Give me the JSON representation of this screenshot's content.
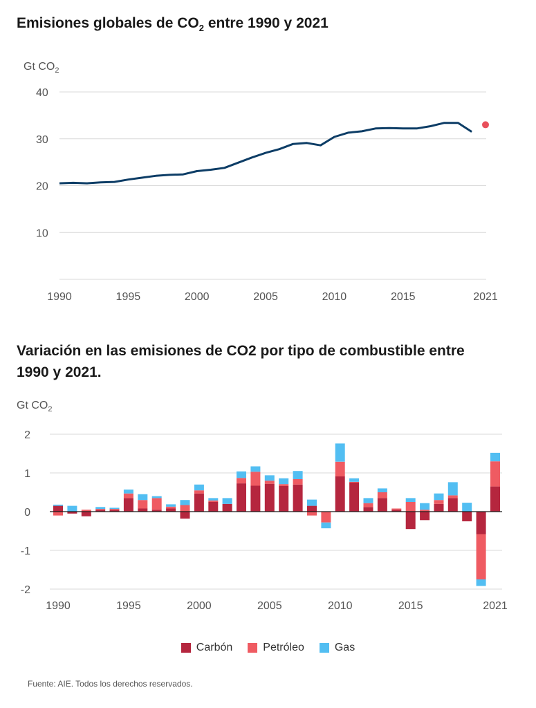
{
  "titles": {
    "chart1_main": "Emisiones globales de CO",
    "chart1_sub": "2",
    "chart1_tail": " entre 1990 y 2021",
    "chart2": "Variación en las emisiones de CO2 por tipo de combustible entre 1990 y 2021."
  },
  "source": "Fuente: AIE. Todos los derechos reservados.",
  "colors": {
    "line": "#0d3d66",
    "dot": "#e8505b",
    "carbon": "#b5263e",
    "petroleo": "#ef5b62",
    "gas": "#52bef2"
  },
  "chart_data": [
    {
      "type": "line",
      "title": "Emisiones globales de CO2 entre 1990 y 2021",
      "ylabel": "Gt CO2",
      "unit_main": "Gt CO",
      "unit_sub": "2",
      "ylim": [
        0,
        40
      ],
      "yticks": [
        10,
        20,
        30,
        40
      ],
      "xticks": [
        1990,
        1995,
        2000,
        2005,
        2010,
        2015,
        2021
      ],
      "grid": true,
      "x": [
        1990,
        1991,
        1992,
        1993,
        1994,
        1995,
        1996,
        1997,
        1998,
        1999,
        2000,
        2001,
        2002,
        2003,
        2004,
        2005,
        2006,
        2007,
        2008,
        2009,
        2010,
        2011,
        2012,
        2013,
        2014,
        2015,
        2016,
        2017,
        2018,
        2019,
        2020
      ],
      "y": [
        20.5,
        20.6,
        20.5,
        20.7,
        20.8,
        21.3,
        21.7,
        22.1,
        22.3,
        22.4,
        23.1,
        23.4,
        23.8,
        24.9,
        26.0,
        27.0,
        27.8,
        28.9,
        29.1,
        28.6,
        30.4,
        31.3,
        31.6,
        32.2,
        32.3,
        32.2,
        32.2,
        32.7,
        33.4,
        33.4,
        31.5
      ],
      "highlight": {
        "x": 2021,
        "y": 33.0
      }
    },
    {
      "type": "bar",
      "stacked": true,
      "title": "Variación en las emisiones de CO2 por tipo de combustible entre 1990 y 2021.",
      "ylabel": "Gt CO2",
      "unit_main": "Gt CO",
      "unit_sub": "2",
      "ylim": [
        -2,
        2
      ],
      "yticks": [
        2,
        1,
        0,
        -1,
        -2
      ],
      "xticks": [
        1990,
        1995,
        2000,
        2005,
        2010,
        2015,
        2021
      ],
      "grid": true,
      "legend_position": "bottom",
      "categories": [
        1990,
        1991,
        1992,
        1993,
        1994,
        1995,
        1996,
        1997,
        1998,
        1999,
        2000,
        2001,
        2002,
        2003,
        2004,
        2005,
        2006,
        2007,
        2008,
        2009,
        2010,
        2011,
        2012,
        2013,
        2014,
        2015,
        2016,
        2017,
        2018,
        2019,
        2020,
        2021
      ],
      "series": [
        {
          "name": "Carbón",
          "values": [
            0.15,
            -0.05,
            -0.12,
            0.05,
            0.05,
            0.35,
            0.08,
            0.05,
            0.08,
            -0.18,
            0.47,
            0.25,
            0.2,
            0.73,
            0.67,
            0.72,
            0.66,
            0.7,
            0.15,
            0.0,
            0.91,
            0.75,
            0.12,
            0.35,
            0.05,
            -0.45,
            -0.22,
            0.2,
            0.35,
            -0.25,
            -0.58,
            0.65
          ]
        },
        {
          "name": "Petróleo",
          "values": [
            -0.1,
            0.0,
            0.05,
            0.02,
            0.02,
            0.12,
            0.22,
            0.3,
            0.05,
            0.17,
            0.08,
            0.04,
            0.0,
            0.14,
            0.36,
            0.08,
            0.05,
            0.14,
            -0.1,
            -0.28,
            0.38,
            0.02,
            0.1,
            0.15,
            0.03,
            0.25,
            0.05,
            0.1,
            0.07,
            0.0,
            -1.17,
            0.65
          ]
        },
        {
          "name": "Gas",
          "values": [
            0.03,
            0.15,
            0.0,
            0.05,
            0.03,
            0.1,
            0.15,
            0.05,
            0.06,
            0.13,
            0.15,
            0.06,
            0.15,
            0.17,
            0.14,
            0.14,
            0.15,
            0.21,
            0.16,
            -0.15,
            0.47,
            0.09,
            0.13,
            0.1,
            0.0,
            0.1,
            0.17,
            0.17,
            0.34,
            0.23,
            -0.17,
            0.22
          ]
        }
      ]
    }
  ]
}
